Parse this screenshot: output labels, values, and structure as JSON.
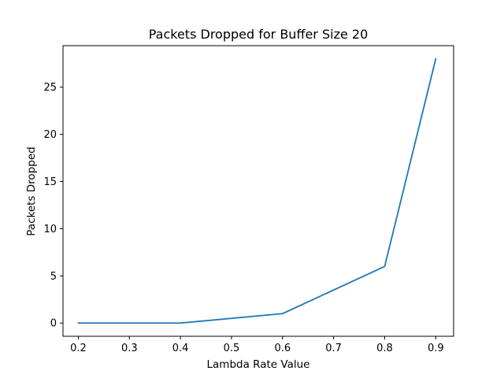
{
  "chart_data": {
    "type": "line",
    "title": "Packets Dropped for Buffer Size 20",
    "xlabel": "Lambda Rate Value",
    "ylabel": "Packets Dropped",
    "x": [
      0.2,
      0.4,
      0.6,
      0.8,
      0.9
    ],
    "series": [
      {
        "values": [
          0,
          0,
          1,
          6,
          28
        ]
      }
    ],
    "xlim": [
      0.17,
      0.935
    ],
    "ylim": [
      -1.4,
      29.4
    ],
    "xticks": [
      0.2,
      0.3,
      0.4,
      0.5,
      0.6,
      0.7,
      0.8,
      0.9
    ],
    "xtick_labels": [
      "0.2",
      "0.3",
      "0.4",
      "0.5",
      "0.6",
      "0.7",
      "0.8",
      "0.9"
    ],
    "yticks": [
      0,
      5,
      10,
      15,
      20,
      25
    ],
    "ytick_labels": [
      "0",
      "5",
      "10",
      "15",
      "20",
      "25"
    ],
    "grid": false,
    "line_color": "#1f77b4"
  }
}
